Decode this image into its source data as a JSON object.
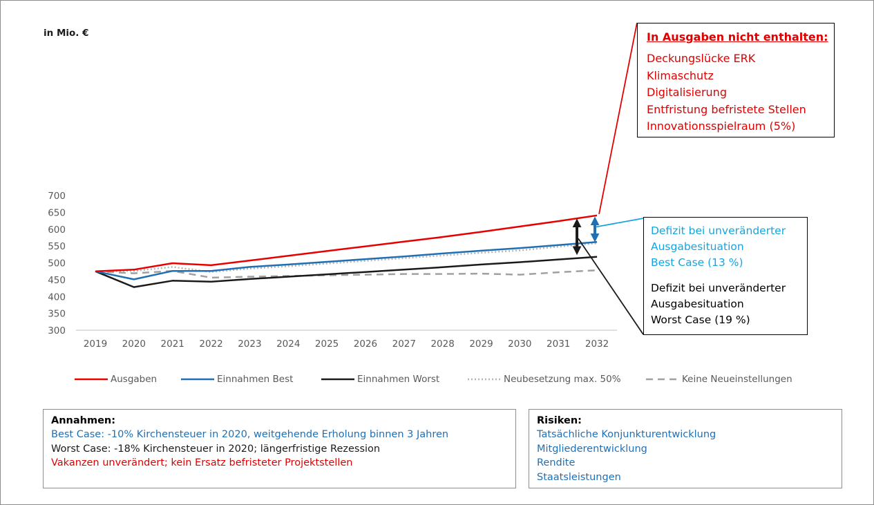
{
  "chart_data": {
    "type": "line",
    "ylabel": "in Mio. €",
    "ylim": [
      300,
      700
    ],
    "yticks": [
      300,
      350,
      400,
      450,
      500,
      550,
      600,
      650,
      700
    ],
    "categories": [
      "2019",
      "2020",
      "2021",
      "2022",
      "2023",
      "2024",
      "2025",
      "2026",
      "2027",
      "2028",
      "2029",
      "2030",
      "2031",
      "2032"
    ],
    "grid": false,
    "legend_position": "bottom",
    "series": [
      {
        "name": "Ausgaben",
        "color": "#e60000",
        "style": "solid",
        "values": [
          475,
          480,
          499,
          493,
          507,
          521,
          535,
          549,
          563,
          577,
          592,
          608,
          624,
          641
        ]
      },
      {
        "name": "Einnahmen Best",
        "color": "#1f6fb5",
        "style": "solid",
        "values": [
          475,
          451,
          476,
          476,
          488,
          495,
          503,
          511,
          519,
          528,
          536,
          544,
          553,
          562
        ]
      },
      {
        "name": "Einnahmen Worst",
        "color": "#1a1a1a",
        "style": "solid",
        "values": [
          475,
          428,
          447,
          444,
          452,
          459,
          466,
          473,
          480,
          487,
          495,
          502,
          510,
          518
        ]
      },
      {
        "name": "Neubesetzung max. 50%",
        "color": "#b5b5b5",
        "style": "dotted",
        "values": [
          475,
          476,
          488,
          473,
          483,
          490,
          498,
          506,
          514,
          522,
          530,
          537,
          548,
          558
        ]
      },
      {
        "name": "Keine Neueinstellungen",
        "color": "#a0a0a0",
        "style": "dashed",
        "values": [
          475,
          469,
          476,
          456,
          459,
          461,
          463,
          465,
          467,
          467,
          468,
          465,
          472,
          478
        ]
      }
    ]
  },
  "annotations": {
    "not_included": {
      "title": "In Ausgaben nicht enthalten:",
      "items": [
        "Deckungslücke ERK",
        "Klimaschutz",
        "Digitalisierung",
        "Entfristung befristete Stellen",
        "Innovationsspielraum (5%)"
      ]
    },
    "deficit_best": [
      "Defizit bei unveränderter",
      "Ausgabesituation",
      "Best Case (13 %)"
    ],
    "deficit_worst": [
      "Defizit bei unveränderter",
      "Ausgabesituation",
      "Worst Case (19 %)"
    ]
  },
  "assumptions": {
    "title": "Annahmen:",
    "lines": [
      {
        "text": "Best Case: -10% Kirchensteuer in 2020, weitgehende Erholung binnen 3 Jahren",
        "color": "#1f6fb5"
      },
      {
        "text": "Worst Case: -18% Kirchensteuer in 2020; längerfristige Rezession",
        "color": "#1a1a1a"
      },
      {
        "text": "Vakanzen unverändert; kein Ersatz befristeter Projektstellen",
        "color": "#e10000"
      }
    ]
  },
  "risks": {
    "title": "Risiken:",
    "lines": [
      "Tatsächliche Konjunkturentwicklung",
      "Mitgliederentwicklung",
      "Rendite",
      "Staatsleistungen"
    ],
    "color": "#1f6fb5"
  },
  "colors": {
    "best_arrow": "#1f6fb5",
    "worst_arrow": "#1a1a1a",
    "best_callout_line": "#14a5e0",
    "text_red": "#e10000",
    "text_blue": "#1f6fb5",
    "text_cyan": "#14a5e0"
  }
}
